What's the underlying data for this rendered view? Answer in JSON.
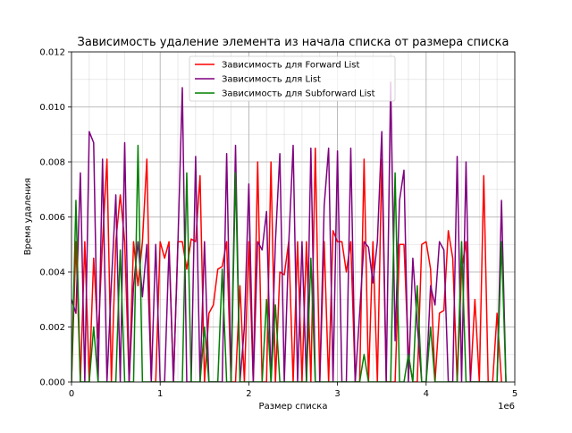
{
  "chart_data": {
    "type": "line",
    "title": "Зависимость удаление элемента из начала списка от размера списка",
    "xlabel": "Размер списка",
    "ylabel": "Время удаления",
    "x_offset_label": "1e6",
    "xlim": [
      0,
      5000000
    ],
    "ylim": [
      0,
      0.012
    ],
    "x_ticks": [
      0,
      1000000,
      2000000,
      3000000,
      4000000,
      5000000
    ],
    "x_tick_labels": [
      "0",
      "1",
      "2",
      "3",
      "4",
      "5"
    ],
    "y_ticks": [
      0,
      0.002,
      0.004,
      0.006,
      0.008,
      0.01,
      0.012
    ],
    "y_tick_labels": [
      "0.000",
      "0.002",
      "0.004",
      "0.006",
      "0.008",
      "0.010",
      "0.012"
    ],
    "grid": true,
    "legend_position": "top-center",
    "x_step": 50000,
    "series": [
      {
        "name": "Зависимость для Forward List",
        "color": "#ff0000",
        "values": [
          0.0,
          0.0051,
          0.0,
          0.0051,
          0.0,
          0.0045,
          0.0016,
          0.0051,
          0.0081,
          0.0,
          0.0051,
          0.0068,
          0.0051,
          0.0,
          0.0051,
          0.0035,
          0.0051,
          0.0081,
          0.0,
          0.0,
          0.0051,
          0.0045,
          0.0051,
          0.0,
          0.0051,
          0.0051,
          0.0041,
          0.0052,
          0.0051,
          0.0075,
          0.0,
          0.0025,
          0.0028,
          0.0041,
          0.0042,
          0.0051,
          0.0,
          0.0,
          0.0035,
          0.0,
          0.0051,
          0.0,
          0.008,
          0.0,
          0.0,
          0.008,
          0.0,
          0.004,
          0.0039,
          0.0051,
          0.0,
          0.0051,
          0.0,
          0.0051,
          0.0,
          0.0085,
          0.0,
          0.0051,
          0.0,
          0.0055,
          0.0051,
          0.0051,
          0.004,
          0.0051,
          0.0,
          0.0,
          0.0081,
          0.0,
          0.0051,
          0.0,
          0.0081,
          0.0,
          0.0,
          0.0,
          0.005,
          0.005,
          0.001,
          0.0,
          0.0,
          0.005,
          0.0051,
          0.0041,
          0.0,
          0.0025,
          0.0026,
          0.0055,
          0.0045,
          0.0,
          0.0041,
          0.0051,
          0.0,
          0.003,
          0.0,
          0.0075,
          0.0,
          0.0,
          0.0025,
          0.0
        ]
      },
      {
        "name": "Зависимость для List",
        "color": "#800080",
        "values": [
          0.003,
          0.0025,
          0.0076,
          0.0,
          0.0091,
          0.0087,
          0.0,
          0.0081,
          0.0,
          0.0036,
          0.0068,
          0.0,
          0.0087,
          0.0,
          0.0035,
          0.0051,
          0.0031,
          0.005,
          0.0,
          0.005,
          0.0,
          0.0,
          0.0049,
          0.0,
          0.005,
          0.0107,
          0.0,
          0.0,
          0.0082,
          0.0,
          0.0051,
          0.0,
          0.0,
          0.0,
          0.0,
          0.0083,
          0.0,
          0.0086,
          0.0,
          0.002,
          0.0072,
          0.0,
          0.0051,
          0.0048,
          0.0062,
          0.0,
          0.0051,
          0.0083,
          0.0,
          0.005,
          0.0086,
          0.0,
          0.0051,
          0.0,
          0.0085,
          0.0,
          0.0,
          0.0064,
          0.0085,
          0.0,
          0.0084,
          0.0,
          0.0,
          0.0085,
          0.0,
          0.0025,
          0.0051,
          0.0049,
          0.0036,
          0.0051,
          0.0091,
          0.0,
          0.0109,
          0.0015,
          0.0066,
          0.0077,
          0.0,
          0.0045,
          0.0021,
          0.0,
          0.0,
          0.0035,
          0.0028,
          0.0051,
          0.0048,
          0.0,
          0.0,
          0.0082,
          0.0,
          0.008,
          0.0,
          0.0,
          0.0,
          0.0,
          0.0,
          0.0,
          0.0,
          0.0066,
          0.0
        ]
      },
      {
        "name": "Зависимость для Subforward List",
        "color": "#008000",
        "values": [
          0.0,
          0.0066,
          0.0,
          0.0,
          0.0,
          0.002,
          0.0,
          0.0,
          0.0,
          0.0,
          0.0,
          0.0048,
          0.0,
          0.0,
          0.0,
          0.0086,
          0.0,
          0.0,
          0.0,
          0.0,
          0.0,
          0.0,
          0.0,
          0.0,
          0.0,
          0.0,
          0.0076,
          0.0,
          0.0,
          0.0,
          0.002,
          0.0,
          0.0,
          0.0,
          0.0041,
          0.0,
          0.0,
          0.0076,
          0.0,
          0.0,
          0.0,
          0.0,
          0.0,
          0.0,
          0.003,
          0.0,
          0.0028,
          0.0,
          0.0,
          0.0,
          0.0,
          0.0,
          0.0,
          0.0,
          0.0045,
          0.0,
          0.0,
          0.0,
          0.0,
          0.0,
          0.0,
          0.0,
          0.0,
          0.0,
          0.0,
          0.0,
          0.001,
          0.0,
          0.0,
          0.0,
          0.0,
          0.0,
          0.0,
          0.0076,
          0.0,
          0.0,
          0.001,
          0.0,
          0.0035,
          0.0,
          0.0,
          0.002,
          0.0,
          0.0,
          0.0,
          0.0,
          0.0,
          0.0,
          0.0051,
          0.0,
          0.0,
          0.0,
          0.0,
          0.0,
          0.0,
          0.0,
          0.0,
          0.0051,
          0.0
        ]
      }
    ]
  }
}
